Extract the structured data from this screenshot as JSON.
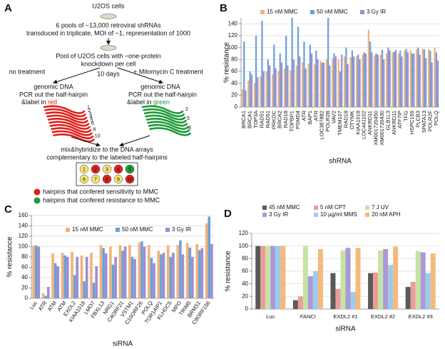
{
  "diagram": {
    "panel": "A",
    "start": "U2OS cells",
    "library_line1": "6 pools of ~13,000 retroviral shRNAs",
    "library_line2": "transduced in triplicate, MOI of ~1, representation of 1000",
    "pool_line1": "Pool of U2OS cells with ~one-protein",
    "pool_line2": "knockdown per cell",
    "left_branch": "no treatment",
    "duration": "10 days",
    "right_branch": "+ Mitomycin C treatment",
    "left_dna": "genomic DNA",
    "right_dna": "genomic DNA",
    "left_pcr": "PCR out the half-hairpin",
    "left_label": "&label in",
    "left_color_word": "red",
    "right_pcr": "PCR out the half-hairpin",
    "right_label": "&label in",
    "right_color_word": "green",
    "red_hairpin_numbers": [
      1,
      2,
      3,
      4,
      5,
      6,
      7,
      8,
      9,
      10
    ],
    "green_hairpin_numbers": [
      2,
      5,
      8
    ],
    "hybridize_line1": "mix&hybridize to the DNA arrays",
    "hybridize_line2": "complementary to the labeled half-hairpins",
    "array_spots": [
      1,
      2,
      3,
      4,
      5,
      6,
      7,
      8,
      9,
      10
    ],
    "legend_red": "hairpins that confered sensitivity to MMC",
    "legend_green": "hairpins that confered resistance to MMC"
  },
  "chart_data": [
    {
      "type": "bar",
      "panel": "B",
      "xlabel": "shRNA",
      "ylabel": "% resistance",
      "categories": [
        "BRCA1",
        "BRCA1",
        "TOP3A",
        "RAD51",
        "RAD51",
        "PRKDC",
        "BRCA2",
        "RAD18",
        "TOPBP1",
        "PSMD4",
        "ATR",
        "BAP1",
        "ATR",
        "LOC387882",
        "POLR2B",
        "VAV2",
        "TMEM107",
        "RAD18",
        "DTYMK",
        "KIAA1018",
        "LOC441102",
        "ANKRD11",
        "XM001720450",
        "XM001720430",
        "GLB1L3",
        "ANKRD11",
        "ATF7IP",
        "TFG",
        "HSPC159",
        "PLCB3",
        "SPATA13",
        "POLR2F",
        "POLQ"
      ],
      "series": [
        {
          "name": "15 nM MMC",
          "color": "#f2b27a",
          "values": [
            30,
            45,
            40,
            52,
            60,
            55,
            60,
            65,
            62,
            70,
            75,
            73,
            72,
            78,
            80,
            82,
            80,
            85,
            84,
            86,
            88,
            130,
            87,
            88,
            90,
            92,
            90,
            95,
            95,
            97,
            98,
            98,
            100
          ]
        },
        {
          "name": "50 nM MMC",
          "color": "#6f9fd8",
          "values": [
            110,
            60,
            120,
            145,
            80,
            105,
            90,
            120,
            150,
            135,
            110,
            105,
            95,
            75,
            150,
            90,
            60,
            100,
            95,
            88,
            92,
            110,
            90,
            96,
            100,
            93,
            95,
            98,
            90,
            100,
            97,
            95,
            92
          ]
        },
        {
          "name": "3 Gy IR",
          "color": "#9b8fcf",
          "values": [
            28,
            55,
            50,
            60,
            70,
            65,
            75,
            70,
            80,
            85,
            65,
            90,
            80,
            75,
            70,
            85,
            88,
            72,
            85,
            80,
            90,
            92,
            88,
            80,
            95,
            96,
            85,
            92,
            90,
            88,
            82,
            75,
            78
          ]
        }
      ],
      "ylim": [
        0,
        150
      ],
      "yticks": [
        0,
        20,
        40,
        60,
        80,
        100,
        120,
        140
      ],
      "grid": true
    },
    {
      "type": "bar",
      "panel": "C",
      "xlabel": "siRNA",
      "ylabel": "% resistance",
      "categories": [
        "Luc",
        "ATR",
        "ATM",
        "ATM",
        "EXDL2",
        "KIAA1018",
        "LMO7",
        "FBXL13",
        "NRG1",
        "C4ORF21",
        "VSTM1",
        "C10ORF26",
        "POLQ",
        "TOR1AIP1",
        "KLHDC5",
        "MPO",
        "TRIM5",
        "BRMS1",
        "C9ORF156"
      ],
      "series": [
        {
          "name": "15 nM MMC",
          "color": "#f2b27a",
          "values": [
            102,
            10,
            87,
            88,
            90,
            83,
            88,
            103,
            100,
            103,
            103,
            108,
            103,
            92,
            103,
            103,
            107,
            105,
            145
          ]
        },
        {
          "name": "50 nM MMC",
          "color": "#6f9fd8",
          "values": [
            102,
            5,
            68,
            83,
            45,
            33,
            30,
            97,
            65,
            92,
            80,
            110,
            78,
            85,
            80,
            112,
            98,
            93,
            158
          ]
        },
        {
          "name": "3 Gy IR",
          "color": "#9b8fcf",
          "values": [
            100,
            22,
            62,
            80,
            80,
            80,
            62,
            87,
            80,
            100,
            76,
            100,
            68,
            88,
            88,
            85,
            80,
            97,
            105
          ]
        }
      ],
      "ylim": [
        0,
        160
      ],
      "yticks": [
        0,
        20,
        40,
        60,
        80,
        100,
        120,
        140,
        160
      ],
      "grid": true
    },
    {
      "type": "bar",
      "panel": "D",
      "xlabel": "siRNA",
      "ylabel": "% resistance",
      "categories": [
        "Luc",
        "FANCI",
        "EXDL2 #1",
        "EXDL2 #2",
        "EXDL2 #3"
      ],
      "series": [
        {
          "name": "45 nM MMC",
          "color": "#5a5a5a",
          "values": [
            100,
            14,
            57,
            57,
            35
          ]
        },
        {
          "name": "5 nM CPT",
          "color": "#ec9c9c",
          "values": [
            100,
            20,
            32,
            58,
            43
          ]
        },
        {
          "name": "7 J UV",
          "color": "#c6e3a4",
          "values": [
            100,
            100,
            93,
            93,
            92
          ]
        },
        {
          "name": "3 Gy IR",
          "color": "#a99ad6",
          "values": [
            100,
            52,
            97,
            95,
            90
          ]
        },
        {
          "name": "10 µg/ml MMS",
          "color": "#9fcbeb",
          "values": [
            100,
            60,
            27,
            70,
            57
          ]
        },
        {
          "name": "20 nM APH",
          "color": "#f4b97c",
          "values": [
            100,
            95,
            97,
            99,
            88
          ]
        }
      ],
      "ylim": [
        0,
        120
      ],
      "yticks": [
        0,
        20,
        40,
        60,
        80,
        100,
        120
      ],
      "grid": true
    }
  ]
}
